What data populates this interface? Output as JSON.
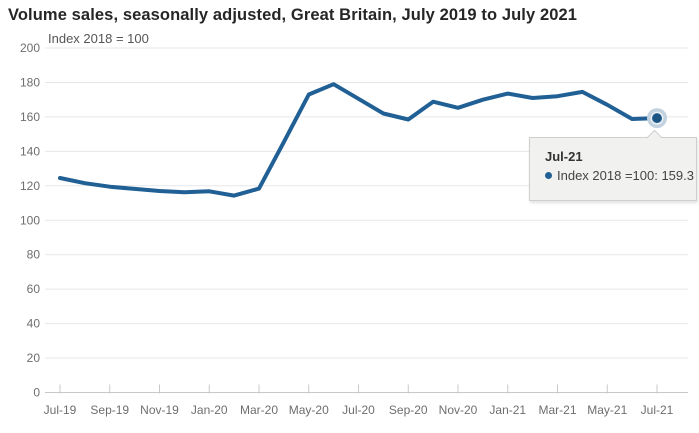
{
  "header": {
    "title": "Volume sales, seasonally adjusted, Great Britain, July 2019 to July 2021"
  },
  "chart_data": {
    "type": "line",
    "title": "Volume sales, seasonally adjusted, Great Britain, July 2019 to July 2021",
    "subtitle": "Index 2018 = 100",
    "categories": [
      "Jul-19",
      "Aug-19",
      "Sep-19",
      "Oct-19",
      "Nov-19",
      "Dec-19",
      "Jan-20",
      "Feb-20",
      "Mar-20",
      "Apr-20",
      "May-20",
      "Jun-20",
      "Jul-20",
      "Aug-20",
      "Sep-20",
      "Oct-20",
      "Nov-20",
      "Dec-20",
      "Jan-21",
      "Feb-21",
      "Mar-21",
      "Apr-21",
      "May-21",
      "Jun-21",
      "Jul-21"
    ],
    "series": [
      {
        "name": "Index 2018 =100",
        "color": "#206095",
        "values": [
          124.5,
          121.5,
          119.5,
          118.2,
          117.0,
          116.2,
          116.8,
          114.3,
          118.4,
          145.5,
          173.0,
          179.0,
          170.5,
          162.0,
          158.5,
          168.8,
          165.3,
          170.0,
          173.5,
          171.0,
          172.0,
          174.5,
          167.0,
          158.8,
          159.3
        ]
      }
    ],
    "xlabel": "",
    "ylabel": "",
    "ylim": [
      0,
      200
    ],
    "y_tick_step": 20,
    "x_tick_labels": [
      "Jul-19",
      "Sep-19",
      "Nov-19",
      "Jan-20",
      "Mar-20",
      "May-20",
      "Jul-20",
      "Sep-20",
      "Nov-20",
      "Jan-21",
      "Mar-21",
      "May-21",
      "Jul-21"
    ],
    "grid": "horizontal-only",
    "legend": "none",
    "highlighted_point": {
      "category": "Jul-21",
      "value": 159.3
    }
  },
  "tooltip": {
    "title": "Jul-21",
    "text": "Index 2018 =100: 159.3"
  },
  "colors": {
    "line": "#206095",
    "grid": "#e7e7e7",
    "axis": "#c8c8c8",
    "tick": "#c8c8c8",
    "axis_label": "#6e6e6e",
    "title_text": "#262626",
    "tooltip_bg": "#f1f1f0",
    "tooltip_border": "#cfcfcf",
    "marker_dot": "#1c5380",
    "marker_ring": "#edf1f4",
    "marker_halo": "#c2d2de"
  }
}
